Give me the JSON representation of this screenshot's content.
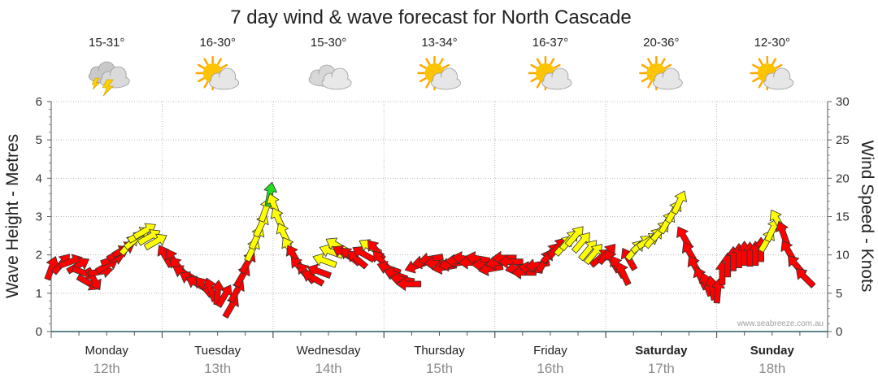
{
  "chart_data": {
    "type": "scatter",
    "title": "7 day wind & wave forecast for North Cascade",
    "ylabel": "Wave Height - Metres",
    "y2label": "Wind Speed - Knots",
    "ylim": [
      0,
      6
    ],
    "y2lim": [
      0,
      30
    ],
    "yticks": [
      "0",
      "1",
      "2",
      "3",
      "4",
      "5",
      "6"
    ],
    "y2ticks": [
      "0",
      "5",
      "10",
      "15",
      "20",
      "25",
      "30"
    ],
    "credit": "www.seabreeze.com.au",
    "grid": true,
    "days": [
      {
        "name": "Monday",
        "date": "12th",
        "temp": "15-31°",
        "icon": "storm-cloud-icon",
        "bold": false
      },
      {
        "name": "Tuesday",
        "date": "13th",
        "temp": "16-30°",
        "icon": "sun-cloud-icon",
        "bold": false
      },
      {
        "name": "Wednesday",
        "date": "14th",
        "temp": "15-30°",
        "icon": "cloud-icon",
        "bold": false
      },
      {
        "name": "Thursday",
        "date": "15th",
        "temp": "13-34°",
        "icon": "sun-cloud-icon",
        "bold": false
      },
      {
        "name": "Friday",
        "date": "16th",
        "temp": "16-37°",
        "icon": "sun-cloud-icon",
        "bold": false
      },
      {
        "name": "Saturday",
        "date": "17th",
        "temp": "20-36°",
        "icon": "sun-cloud-icon",
        "bold": true
      },
      {
        "name": "Sunday",
        "date": "18th",
        "temp": "12-30°",
        "icon": "sun-cloud-icon",
        "bold": true
      }
    ],
    "colors": {
      "strong": "#ff0000",
      "moderate": "#ffff00",
      "light": "#22dd22",
      "outline": "#333333"
    },
    "wind_series": {
      "name": "Wind Speed",
      "points": [
        [
          0.0,
          8.2,
          20,
          "strong"
        ],
        [
          0.09,
          8.8,
          40,
          "strong"
        ],
        [
          0.17,
          9.1,
          70,
          "strong"
        ],
        [
          0.24,
          8.6,
          60,
          "strong"
        ],
        [
          0.29,
          7.7,
          110,
          "strong"
        ],
        [
          0.33,
          6.4,
          120,
          "strong"
        ],
        [
          0.38,
          6.9,
          150,
          "strong"
        ],
        [
          0.44,
          7.8,
          80,
          "strong"
        ],
        [
          0.5,
          8.6,
          60,
          "strong"
        ],
        [
          0.55,
          9.4,
          70,
          "strong"
        ],
        [
          0.6,
          10.2,
          60,
          "strong"
        ],
        [
          0.65,
          10.7,
          60,
          "strong"
        ],
        [
          0.7,
          11.3,
          40,
          "moderate"
        ],
        [
          0.75,
          11.9,
          50,
          "moderate"
        ],
        [
          0.79,
          12.6,
          60,
          "moderate"
        ],
        [
          0.84,
          13.1,
          60,
          "moderate"
        ],
        [
          0.88,
          12.3,
          60,
          "moderate"
        ],
        [
          0.94,
          11.7,
          60,
          "moderate"
        ],
        [
          1.03,
          9.8,
          330,
          "strong"
        ],
        [
          1.1,
          9.3,
          330,
          "strong"
        ],
        [
          1.15,
          8.4,
          320,
          "strong"
        ],
        [
          1.2,
          7.6,
          300,
          "strong"
        ],
        [
          1.26,
          6.8,
          300,
          "strong"
        ],
        [
          1.32,
          6.2,
          300,
          "strong"
        ],
        [
          1.38,
          5.8,
          320,
          "strong"
        ],
        [
          1.44,
          5.4,
          340,
          "strong"
        ],
        [
          1.5,
          5.0,
          5,
          "strong"
        ],
        [
          1.56,
          4.6,
          30,
          "strong"
        ],
        [
          1.62,
          3.2,
          30,
          "strong"
        ],
        [
          1.67,
          5.2,
          30,
          "strong"
        ],
        [
          1.72,
          7.2,
          30,
          "strong"
        ],
        [
          1.77,
          9.0,
          30,
          "strong"
        ],
        [
          1.81,
          10.6,
          25,
          "moderate"
        ],
        [
          1.85,
          12.2,
          25,
          "moderate"
        ],
        [
          1.89,
          13.8,
          25,
          "moderate"
        ],
        [
          1.93,
          15.8,
          20,
          "moderate"
        ],
        [
          1.97,
          17.8,
          10,
          "light"
        ],
        [
          2.01,
          16.4,
          340,
          "moderate"
        ],
        [
          2.05,
          14.6,
          335,
          "moderate"
        ],
        [
          2.1,
          12.6,
          335,
          "moderate"
        ],
        [
          2.15,
          10.8,
          330,
          "moderate"
        ],
        [
          2.19,
          9.8,
          330,
          "strong"
        ],
        [
          2.24,
          8.4,
          320,
          "strong"
        ],
        [
          2.3,
          7.6,
          320,
          "strong"
        ],
        [
          2.36,
          7.0,
          300,
          "strong"
        ],
        [
          2.42,
          7.8,
          290,
          "strong"
        ],
        [
          2.47,
          9.2,
          290,
          "moderate"
        ],
        [
          2.53,
          10.4,
          290,
          "moderate"
        ],
        [
          2.58,
          11.2,
          300,
          "moderate"
        ],
        [
          2.64,
          10.2,
          300,
          "strong"
        ],
        [
          2.7,
          9.8,
          310,
          "strong"
        ],
        [
          2.76,
          9.4,
          310,
          "strong"
        ],
        [
          2.82,
          10.1,
          300,
          "strong"
        ],
        [
          2.88,
          11.0,
          300,
          "moderate"
        ],
        [
          2.93,
          10.6,
          320,
          "strong"
        ],
        [
          2.98,
          9.2,
          320,
          "strong"
        ],
        [
          3.05,
          8.2,
          290,
          "strong"
        ],
        [
          3.11,
          7.4,
          290,
          "strong"
        ],
        [
          3.17,
          6.8,
          280,
          "strong"
        ],
        [
          3.23,
          6.2,
          270,
          "strong"
        ],
        [
          3.3,
          8.6,
          250,
          "strong"
        ],
        [
          3.37,
          9.1,
          260,
          "strong"
        ],
        [
          3.43,
          9.5,
          260,
          "strong"
        ],
        [
          3.48,
          8.9,
          270,
          "strong"
        ],
        [
          3.55,
          8.4,
          260,
          "strong"
        ],
        [
          3.61,
          8.8,
          260,
          "strong"
        ],
        [
          3.67,
          9.2,
          270,
          "strong"
        ],
        [
          3.73,
          9.5,
          280,
          "strong"
        ],
        [
          3.79,
          9.0,
          270,
          "strong"
        ],
        [
          3.85,
          9.5,
          280,
          "strong"
        ],
        [
          3.91,
          8.7,
          270,
          "strong"
        ],
        [
          3.97,
          8.2,
          260,
          "strong"
        ],
        [
          4.03,
          9.0,
          260,
          "strong"
        ],
        [
          4.09,
          9.6,
          270,
          "strong"
        ],
        [
          4.15,
          9.1,
          270,
          "strong"
        ],
        [
          4.21,
          8.3,
          260,
          "strong"
        ],
        [
          4.27,
          7.7,
          270,
          "strong"
        ],
        [
          4.33,
          8.2,
          280,
          "strong"
        ],
        [
          4.39,
          8.7,
          260,
          "strong"
        ],
        [
          4.45,
          9.2,
          30,
          "strong"
        ],
        [
          4.5,
          10.2,
          40,
          "strong"
        ],
        [
          4.56,
          10.9,
          40,
          "strong"
        ],
        [
          4.62,
          11.2,
          40,
          "moderate"
        ],
        [
          4.67,
          11.9,
          40,
          "moderate"
        ],
        [
          4.72,
          12.4,
          40,
          "moderate"
        ],
        [
          4.78,
          11.6,
          40,
          "moderate"
        ],
        [
          4.84,
          10.6,
          40,
          "moderate"
        ],
        [
          4.89,
          10.1,
          40,
          "moderate"
        ],
        [
          4.95,
          9.6,
          50,
          "strong"
        ],
        [
          5.01,
          10.1,
          40,
          "strong"
        ],
        [
          5.06,
          9.2,
          330,
          "strong"
        ],
        [
          5.11,
          8.4,
          330,
          "strong"
        ],
        [
          5.16,
          7.5,
          335,
          "strong"
        ],
        [
          5.21,
          9.4,
          330,
          "strong"
        ],
        [
          5.26,
          10.6,
          40,
          "moderate"
        ],
        [
          5.32,
          11.4,
          50,
          "moderate"
        ],
        [
          5.38,
          11.8,
          60,
          "moderate"
        ],
        [
          5.43,
          12.2,
          40,
          "moderate"
        ],
        [
          5.49,
          13.1,
          40,
          "moderate"
        ],
        [
          5.55,
          14.2,
          30,
          "moderate"
        ],
        [
          5.61,
          15.6,
          30,
          "moderate"
        ],
        [
          5.66,
          16.8,
          25,
          "moderate"
        ],
        [
          5.71,
          12.2,
          330,
          "strong"
        ],
        [
          5.76,
          10.2,
          330,
          "strong"
        ],
        [
          5.81,
          8.4,
          330,
          "strong"
        ],
        [
          5.86,
          6.9,
          335,
          "strong"
        ],
        [
          5.91,
          6.1,
          340,
          "strong"
        ],
        [
          5.96,
          5.6,
          350,
          "strong"
        ],
        [
          6.01,
          5.2,
          5,
          "strong"
        ],
        [
          6.05,
          7.6,
          0,
          "strong"
        ],
        [
          6.1,
          8.6,
          0,
          "strong"
        ],
        [
          6.15,
          9.4,
          0,
          "strong"
        ],
        [
          6.2,
          9.8,
          0,
          "strong"
        ],
        [
          6.25,
          10.1,
          0,
          "strong"
        ],
        [
          6.3,
          10.0,
          0,
          "strong"
        ],
        [
          6.35,
          10.1,
          0,
          "strong"
        ],
        [
          6.4,
          10.6,
          0,
          "strong"
        ],
        [
          6.45,
          11.8,
          30,
          "moderate"
        ],
        [
          6.5,
          13.2,
          25,
          "moderate"
        ],
        [
          6.55,
          14.4,
          330,
          "moderate"
        ],
        [
          6.6,
          12.8,
          340,
          "strong"
        ],
        [
          6.65,
          10.4,
          330,
          "strong"
        ],
        [
          6.72,
          8.6,
          320,
          "strong"
        ],
        [
          6.8,
          7.0,
          315,
          "strong"
        ]
      ]
    }
  }
}
